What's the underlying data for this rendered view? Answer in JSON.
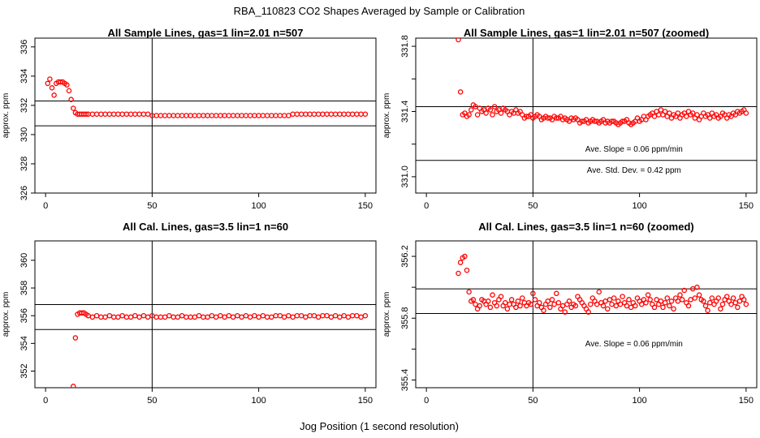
{
  "figure": {
    "main_title": "RBA_110823  CO2 Shapes Averaged by Sample or Calibration",
    "xlabel": "Jog Position (1 second resolution)"
  },
  "chart_data": [
    {
      "type": "scatter",
      "title": "All Sample Lines, gas=1 lin=2.01 n=507",
      "ylabel": "approx. ppm",
      "xlim": [
        -5,
        155
      ],
      "ylim": [
        326,
        336.6
      ],
      "xticks": [
        0,
        50,
        100,
        150
      ],
      "yticks": [
        326,
        328,
        330,
        332,
        334,
        336
      ],
      "marker_color": "#ff0000",
      "vline": 50,
      "hlines": [
        330.6,
        332.3
      ],
      "annotations": [],
      "x": [
        1,
        2,
        3,
        4,
        5,
        6,
        7,
        8,
        9,
        10,
        11,
        12,
        13,
        14,
        15,
        16,
        17,
        18,
        19,
        20,
        22,
        24,
        26,
        28,
        30,
        32,
        34,
        36,
        38,
        40,
        42,
        44,
        46,
        48,
        50,
        52,
        54,
        56,
        58,
        60,
        62,
        64,
        66,
        68,
        70,
        72,
        74,
        76,
        78,
        80,
        82,
        84,
        86,
        88,
        90,
        92,
        94,
        96,
        98,
        100,
        102,
        104,
        106,
        108,
        110,
        112,
        114,
        116,
        118,
        120,
        122,
        124,
        126,
        128,
        130,
        132,
        134,
        136,
        138,
        140,
        142,
        144,
        146,
        148,
        150
      ],
      "y": [
        333.5,
        333.8,
        333.2,
        332.7,
        333.5,
        333.6,
        333.6,
        333.6,
        333.5,
        333.4,
        333.0,
        332.4,
        331.8,
        331.5,
        331.4,
        331.4,
        331.4,
        331.4,
        331.4,
        331.4,
        331.4,
        331.4,
        331.4,
        331.4,
        331.4,
        331.4,
        331.4,
        331.4,
        331.4,
        331.4,
        331.4,
        331.4,
        331.4,
        331.4,
        331.3,
        331.3,
        331.3,
        331.3,
        331.3,
        331.3,
        331.3,
        331.3,
        331.3,
        331.3,
        331.3,
        331.3,
        331.3,
        331.3,
        331.3,
        331.3,
        331.3,
        331.3,
        331.3,
        331.3,
        331.3,
        331.3,
        331.3,
        331.3,
        331.3,
        331.3,
        331.3,
        331.3,
        331.3,
        331.3,
        331.3,
        331.3,
        331.3,
        331.4,
        331.4,
        331.4,
        331.4,
        331.4,
        331.4,
        331.4,
        331.4,
        331.4,
        331.4,
        331.4,
        331.4,
        331.4,
        331.4,
        331.4,
        331.4,
        331.4,
        331.4
      ]
    },
    {
      "type": "scatter",
      "title": "All Sample Lines, gas=1 lin=2.01 n=507 (zoomed)",
      "ylabel": "approx. ppm",
      "xlim": [
        -5,
        155
      ],
      "ylim": [
        330.9,
        331.85
      ],
      "xticks": [
        0,
        50,
        100,
        150
      ],
      "yticks": [
        331.0,
        331.2,
        331.4,
        331.6,
        331.8
      ],
      "ytick_labels_shown": [
        "331.0",
        "",
        "331.4",
        "",
        "331.8"
      ],
      "marker_color": "#ff0000",
      "vline": 50,
      "hlines": [
        331.1,
        331.43
      ],
      "annotations": [
        "Ave. Slope =  0.06  ppm/min",
        "Ave. Std. Dev. =  0.42  ppm"
      ],
      "x": [
        15,
        16,
        17,
        18,
        19,
        20,
        21,
        22,
        23,
        24,
        25,
        26,
        27,
        28,
        29,
        30,
        31,
        32,
        33,
        34,
        35,
        36,
        37,
        38,
        39,
        40,
        41,
        42,
        43,
        44,
        45,
        46,
        47,
        48,
        49,
        50,
        51,
        52,
        53,
        54,
        55,
        56,
        57,
        58,
        59,
        60,
        61,
        62,
        63,
        64,
        65,
        66,
        67,
        68,
        69,
        70,
        71,
        72,
        73,
        74,
        75,
        76,
        77,
        78,
        79,
        80,
        81,
        82,
        83,
        84,
        85,
        86,
        87,
        88,
        89,
        90,
        91,
        92,
        93,
        94,
        95,
        96,
        97,
        98,
        99,
        100,
        101,
        102,
        103,
        104,
        105,
        106,
        107,
        108,
        109,
        110,
        111,
        112,
        113,
        114,
        115,
        116,
        117,
        118,
        119,
        120,
        121,
        122,
        123,
        124,
        125,
        126,
        127,
        128,
        129,
        130,
        131,
        132,
        133,
        134,
        135,
        136,
        137,
        138,
        139,
        140,
        141,
        142,
        143,
        144,
        145,
        146,
        147,
        148,
        149,
        150
      ],
      "y": [
        331.84,
        331.52,
        331.38,
        331.39,
        331.37,
        331.38,
        331.41,
        331.44,
        331.43,
        331.38,
        331.42,
        331.4,
        331.41,
        331.39,
        331.42,
        331.41,
        331.38,
        331.43,
        331.4,
        331.41,
        331.39,
        331.42,
        331.41,
        331.4,
        331.38,
        331.4,
        331.39,
        331.41,
        331.39,
        331.4,
        331.38,
        331.36,
        331.37,
        331.37,
        331.38,
        331.36,
        331.37,
        331.38,
        331.37,
        331.35,
        331.36,
        331.37,
        331.36,
        331.36,
        331.35,
        331.37,
        331.36,
        331.36,
        331.37,
        331.35,
        331.36,
        331.35,
        331.34,
        331.36,
        331.35,
        331.36,
        331.35,
        331.33,
        331.34,
        331.34,
        331.35,
        331.33,
        331.34,
        331.35,
        331.34,
        331.34,
        331.33,
        331.34,
        331.35,
        331.33,
        331.34,
        331.33,
        331.34,
        331.34,
        331.33,
        331.32,
        331.33,
        331.34,
        331.34,
        331.35,
        331.33,
        331.32,
        331.33,
        331.34,
        331.36,
        331.34,
        331.35,
        331.37,
        331.35,
        331.37,
        331.38,
        331.39,
        331.37,
        331.4,
        331.38,
        331.41,
        331.38,
        331.4,
        331.37,
        331.39,
        331.36,
        331.38,
        331.37,
        331.39,
        331.36,
        331.38,
        331.39,
        331.37,
        331.4,
        331.38,
        331.39,
        331.36,
        331.38,
        331.35,
        331.37,
        331.39,
        331.37,
        331.38,
        331.36,
        331.39,
        331.37,
        331.38,
        331.36,
        331.37,
        331.39,
        331.38,
        331.36,
        331.38,
        331.37,
        331.39,
        331.38,
        331.4,
        331.39,
        331.4,
        331.41,
        331.39
      ]
    },
    {
      "type": "scatter",
      "title": "All Cal. Lines, gas=3.5 lin=1 n=60",
      "ylabel": "approx. ppm",
      "xlim": [
        -5,
        155
      ],
      "ylim": [
        350.8,
        361.4
      ],
      "xticks": [
        0,
        50,
        100,
        150
      ],
      "yticks": [
        352,
        354,
        356,
        358,
        360
      ],
      "marker_color": "#ff0000",
      "vline": 50,
      "hlines": [
        355.0,
        356.8
      ],
      "annotations": [],
      "x": [
        13,
        14,
        15,
        16,
        17,
        18,
        19,
        20,
        22,
        24,
        26,
        28,
        30,
        32,
        34,
        36,
        38,
        40,
        42,
        44,
        46,
        48,
        50,
        52,
        54,
        56,
        58,
        60,
        62,
        64,
        66,
        68,
        70,
        72,
        74,
        76,
        78,
        80,
        82,
        84,
        86,
        88,
        90,
        92,
        94,
        96,
        98,
        100,
        102,
        104,
        106,
        108,
        110,
        112,
        114,
        116,
        118,
        120,
        122,
        124,
        126,
        128,
        130,
        132,
        134,
        136,
        138,
        140,
        142,
        144,
        146,
        148,
        150
      ],
      "y": [
        350.9,
        354.4,
        356.1,
        356.2,
        356.2,
        356.2,
        356.1,
        356.0,
        355.9,
        356.0,
        355.9,
        355.9,
        356.0,
        355.9,
        355.9,
        356.0,
        355.9,
        355.9,
        356.0,
        355.9,
        356.0,
        355.9,
        356.0,
        355.9,
        355.9,
        355.9,
        356.0,
        355.9,
        355.9,
        356.0,
        355.9,
        355.9,
        355.9,
        356.0,
        355.9,
        355.9,
        356.0,
        355.9,
        356.0,
        355.9,
        356.0,
        355.9,
        356.0,
        355.9,
        356.0,
        355.9,
        356.0,
        355.9,
        356.0,
        355.9,
        355.9,
        356.0,
        356.0,
        355.9,
        356.0,
        355.9,
        356.0,
        356.0,
        355.9,
        356.0,
        356.0,
        355.9,
        356.0,
        356.0,
        355.9,
        356.0,
        355.9,
        356.0,
        355.9,
        356.0,
        356.0,
        355.9,
        356.0
      ]
    },
    {
      "type": "scatter",
      "title": "All Cal. Lines, gas=3.5 lin=1 n=60 (zoomed)",
      "ylabel": "approx. ppm",
      "xlim": [
        -5,
        155
      ],
      "ylim": [
        355.35,
        356.3
      ],
      "xticks": [
        0,
        50,
        100,
        150
      ],
      "yticks": [
        355.4,
        355.6,
        355.8,
        356.0,
        356.2
      ],
      "ytick_labels_shown": [
        "355.4",
        "",
        "355.8",
        "",
        "356.2"
      ],
      "marker_color": "#ff0000",
      "vline": 50,
      "hlines": [
        355.83,
        355.99
      ],
      "annotations": [
        "Ave. Slope =  0.06  ppm/min"
      ],
      "x": [
        15,
        16,
        17,
        18,
        19,
        20,
        21,
        22,
        23,
        24,
        25,
        26,
        27,
        28,
        29,
        30,
        31,
        32,
        33,
        34,
        35,
        36,
        37,
        38,
        39,
        40,
        41,
        42,
        43,
        44,
        45,
        46,
        47,
        48,
        49,
        50,
        51,
        52,
        53,
        54,
        55,
        56,
        57,
        58,
        59,
        60,
        61,
        62,
        63,
        64,
        65,
        66,
        67,
        68,
        69,
        70,
        71,
        72,
        73,
        74,
        75,
        76,
        77,
        78,
        79,
        80,
        81,
        82,
        83,
        84,
        85,
        86,
        87,
        88,
        89,
        90,
        91,
        92,
        93,
        94,
        95,
        96,
        97,
        98,
        99,
        100,
        101,
        102,
        103,
        104,
        105,
        106,
        107,
        108,
        109,
        110,
        111,
        112,
        113,
        114,
        115,
        116,
        117,
        118,
        119,
        120,
        121,
        122,
        123,
        124,
        125,
        126,
        127,
        128,
        129,
        130,
        131,
        132,
        133,
        134,
        135,
        136,
        137,
        138,
        139,
        140,
        141,
        142,
        143,
        144,
        145,
        146,
        147,
        148,
        149,
        150
      ],
      "y": [
        356.09,
        356.16,
        356.19,
        356.2,
        356.11,
        355.97,
        355.91,
        355.92,
        355.89,
        355.86,
        355.88,
        355.92,
        355.91,
        355.89,
        355.91,
        355.87,
        355.95,
        355.9,
        355.88,
        355.92,
        355.94,
        355.88,
        355.9,
        355.86,
        355.89,
        355.92,
        355.89,
        355.87,
        355.91,
        355.88,
        355.93,
        355.9,
        355.88,
        355.9,
        355.89,
        355.96,
        355.92,
        355.88,
        355.9,
        355.87,
        355.85,
        355.89,
        355.91,
        355.87,
        355.92,
        355.89,
        355.96,
        355.9,
        355.86,
        355.88,
        355.84,
        355.89,
        355.91,
        355.87,
        355.89,
        355.88,
        355.94,
        355.92,
        355.9,
        355.88,
        355.86,
        355.84,
        355.89,
        355.93,
        355.91,
        355.89,
        355.97,
        355.9,
        355.88,
        355.91,
        355.86,
        355.92,
        355.89,
        355.93,
        355.88,
        355.91,
        355.89,
        355.94,
        355.9,
        355.88,
        355.92,
        355.87,
        355.9,
        355.88,
        355.93,
        355.91,
        355.89,
        355.92,
        355.9,
        355.95,
        355.92,
        355.89,
        355.87,
        355.92,
        355.89,
        355.91,
        355.87,
        355.9,
        355.93,
        355.88,
        355.91,
        355.86,
        355.93,
        355.91,
        355.95,
        355.92,
        355.98,
        355.9,
        355.88,
        355.92,
        355.99,
        355.93,
        356.0,
        355.95,
        355.92,
        355.91,
        355.88,
        355.85,
        355.9,
        355.93,
        355.89,
        355.91,
        355.93,
        355.86,
        355.89,
        355.92,
        355.94,
        355.91,
        355.89,
        355.93,
        355.9,
        355.87,
        355.91,
        355.94,
        355.92,
        355.89
      ]
    }
  ]
}
